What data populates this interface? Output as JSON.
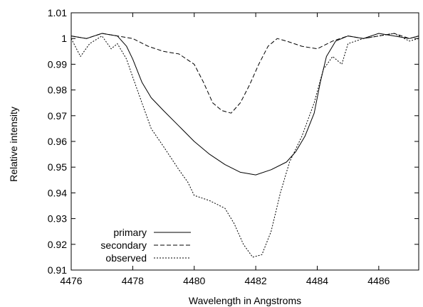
{
  "chart_data": {
    "type": "line",
    "xlabel": "Wavelength in Angstroms",
    "ylabel": "Relative intensity",
    "xlim": [
      4476,
      4487.3
    ],
    "ylim": [
      0.91,
      1.01
    ],
    "x_ticks": [
      4476,
      4478,
      4480,
      4482,
      4484,
      4486
    ],
    "y_ticks": [
      0.91,
      0.92,
      0.93,
      0.94,
      0.95,
      0.96,
      0.97,
      0.98,
      0.99,
      1,
      1.01
    ],
    "grid": false,
    "legend_position": "bottom-left",
    "series": [
      {
        "name": "primary",
        "style": "solid",
        "x": [
          4476.0,
          4476.5,
          4477.0,
          4477.5,
          4477.8,
          4478.0,
          4478.3,
          4478.6,
          4479.0,
          4479.5,
          4480.0,
          4480.5,
          4481.0,
          4481.5,
          4482.0,
          4482.5,
          4483.0,
          4483.3,
          4483.6,
          4483.9,
          4484.1,
          4484.3,
          4484.6,
          4485.0,
          4485.5,
          4486.0,
          4486.5,
          4487.0,
          4487.3
        ],
        "y": [
          1.001,
          1.0,
          1.002,
          1.001,
          0.997,
          0.992,
          0.983,
          0.977,
          0.972,
          0.966,
          0.96,
          0.955,
          0.951,
          0.948,
          0.947,
          0.949,
          0.952,
          0.956,
          0.962,
          0.971,
          0.983,
          0.993,
          0.999,
          1.001,
          1.0,
          1.002,
          1.001,
          1.0,
          1.001
        ]
      },
      {
        "name": "secondary",
        "style": "dashed",
        "x": [
          4476.0,
          4476.5,
          4477.0,
          4477.5,
          4478.0,
          4478.5,
          4479.0,
          4479.5,
          4480.0,
          4480.3,
          4480.6,
          4480.9,
          4481.2,
          4481.5,
          4481.8,
          4482.1,
          4482.4,
          4482.7,
          4483.0,
          4483.5,
          4484.0,
          4484.5,
          4485.0,
          4485.5,
          4486.0,
          4486.5,
          4487.0,
          4487.3
        ],
        "y": [
          1.001,
          1.0,
          1.002,
          1.001,
          1.0,
          0.997,
          0.995,
          0.994,
          0.99,
          0.983,
          0.975,
          0.972,
          0.971,
          0.975,
          0.982,
          0.99,
          0.997,
          1.0,
          0.999,
          0.997,
          0.996,
          0.999,
          1.001,
          1.0,
          1.001,
          1.002,
          1.0,
          1.001
        ]
      },
      {
        "name": "observed",
        "style": "dotted",
        "x": [
          4476.0,
          4476.3,
          4476.6,
          4477.0,
          4477.3,
          4477.5,
          4477.8,
          4478.0,
          4478.3,
          4478.6,
          4479.0,
          4479.5,
          4479.8,
          4480.0,
          4480.5,
          4481.0,
          4481.3,
          4481.6,
          4481.9,
          4482.2,
          4482.5,
          4482.8,
          4483.1,
          4483.5,
          4483.9,
          4484.2,
          4484.5,
          4484.8,
          4485.0,
          4485.5,
          4486.0,
          4486.5,
          4487.0,
          4487.3
        ],
        "y": [
          1.0,
          0.993,
          0.998,
          1.001,
          0.996,
          0.998,
          0.992,
          0.985,
          0.975,
          0.965,
          0.958,
          0.949,
          0.944,
          0.939,
          0.937,
          0.934,
          0.928,
          0.92,
          0.915,
          0.916,
          0.925,
          0.94,
          0.952,
          0.962,
          0.975,
          0.988,
          0.993,
          0.99,
          0.998,
          1.0,
          1.001,
          1.002,
          0.999,
          1.0
        ]
      }
    ]
  }
}
